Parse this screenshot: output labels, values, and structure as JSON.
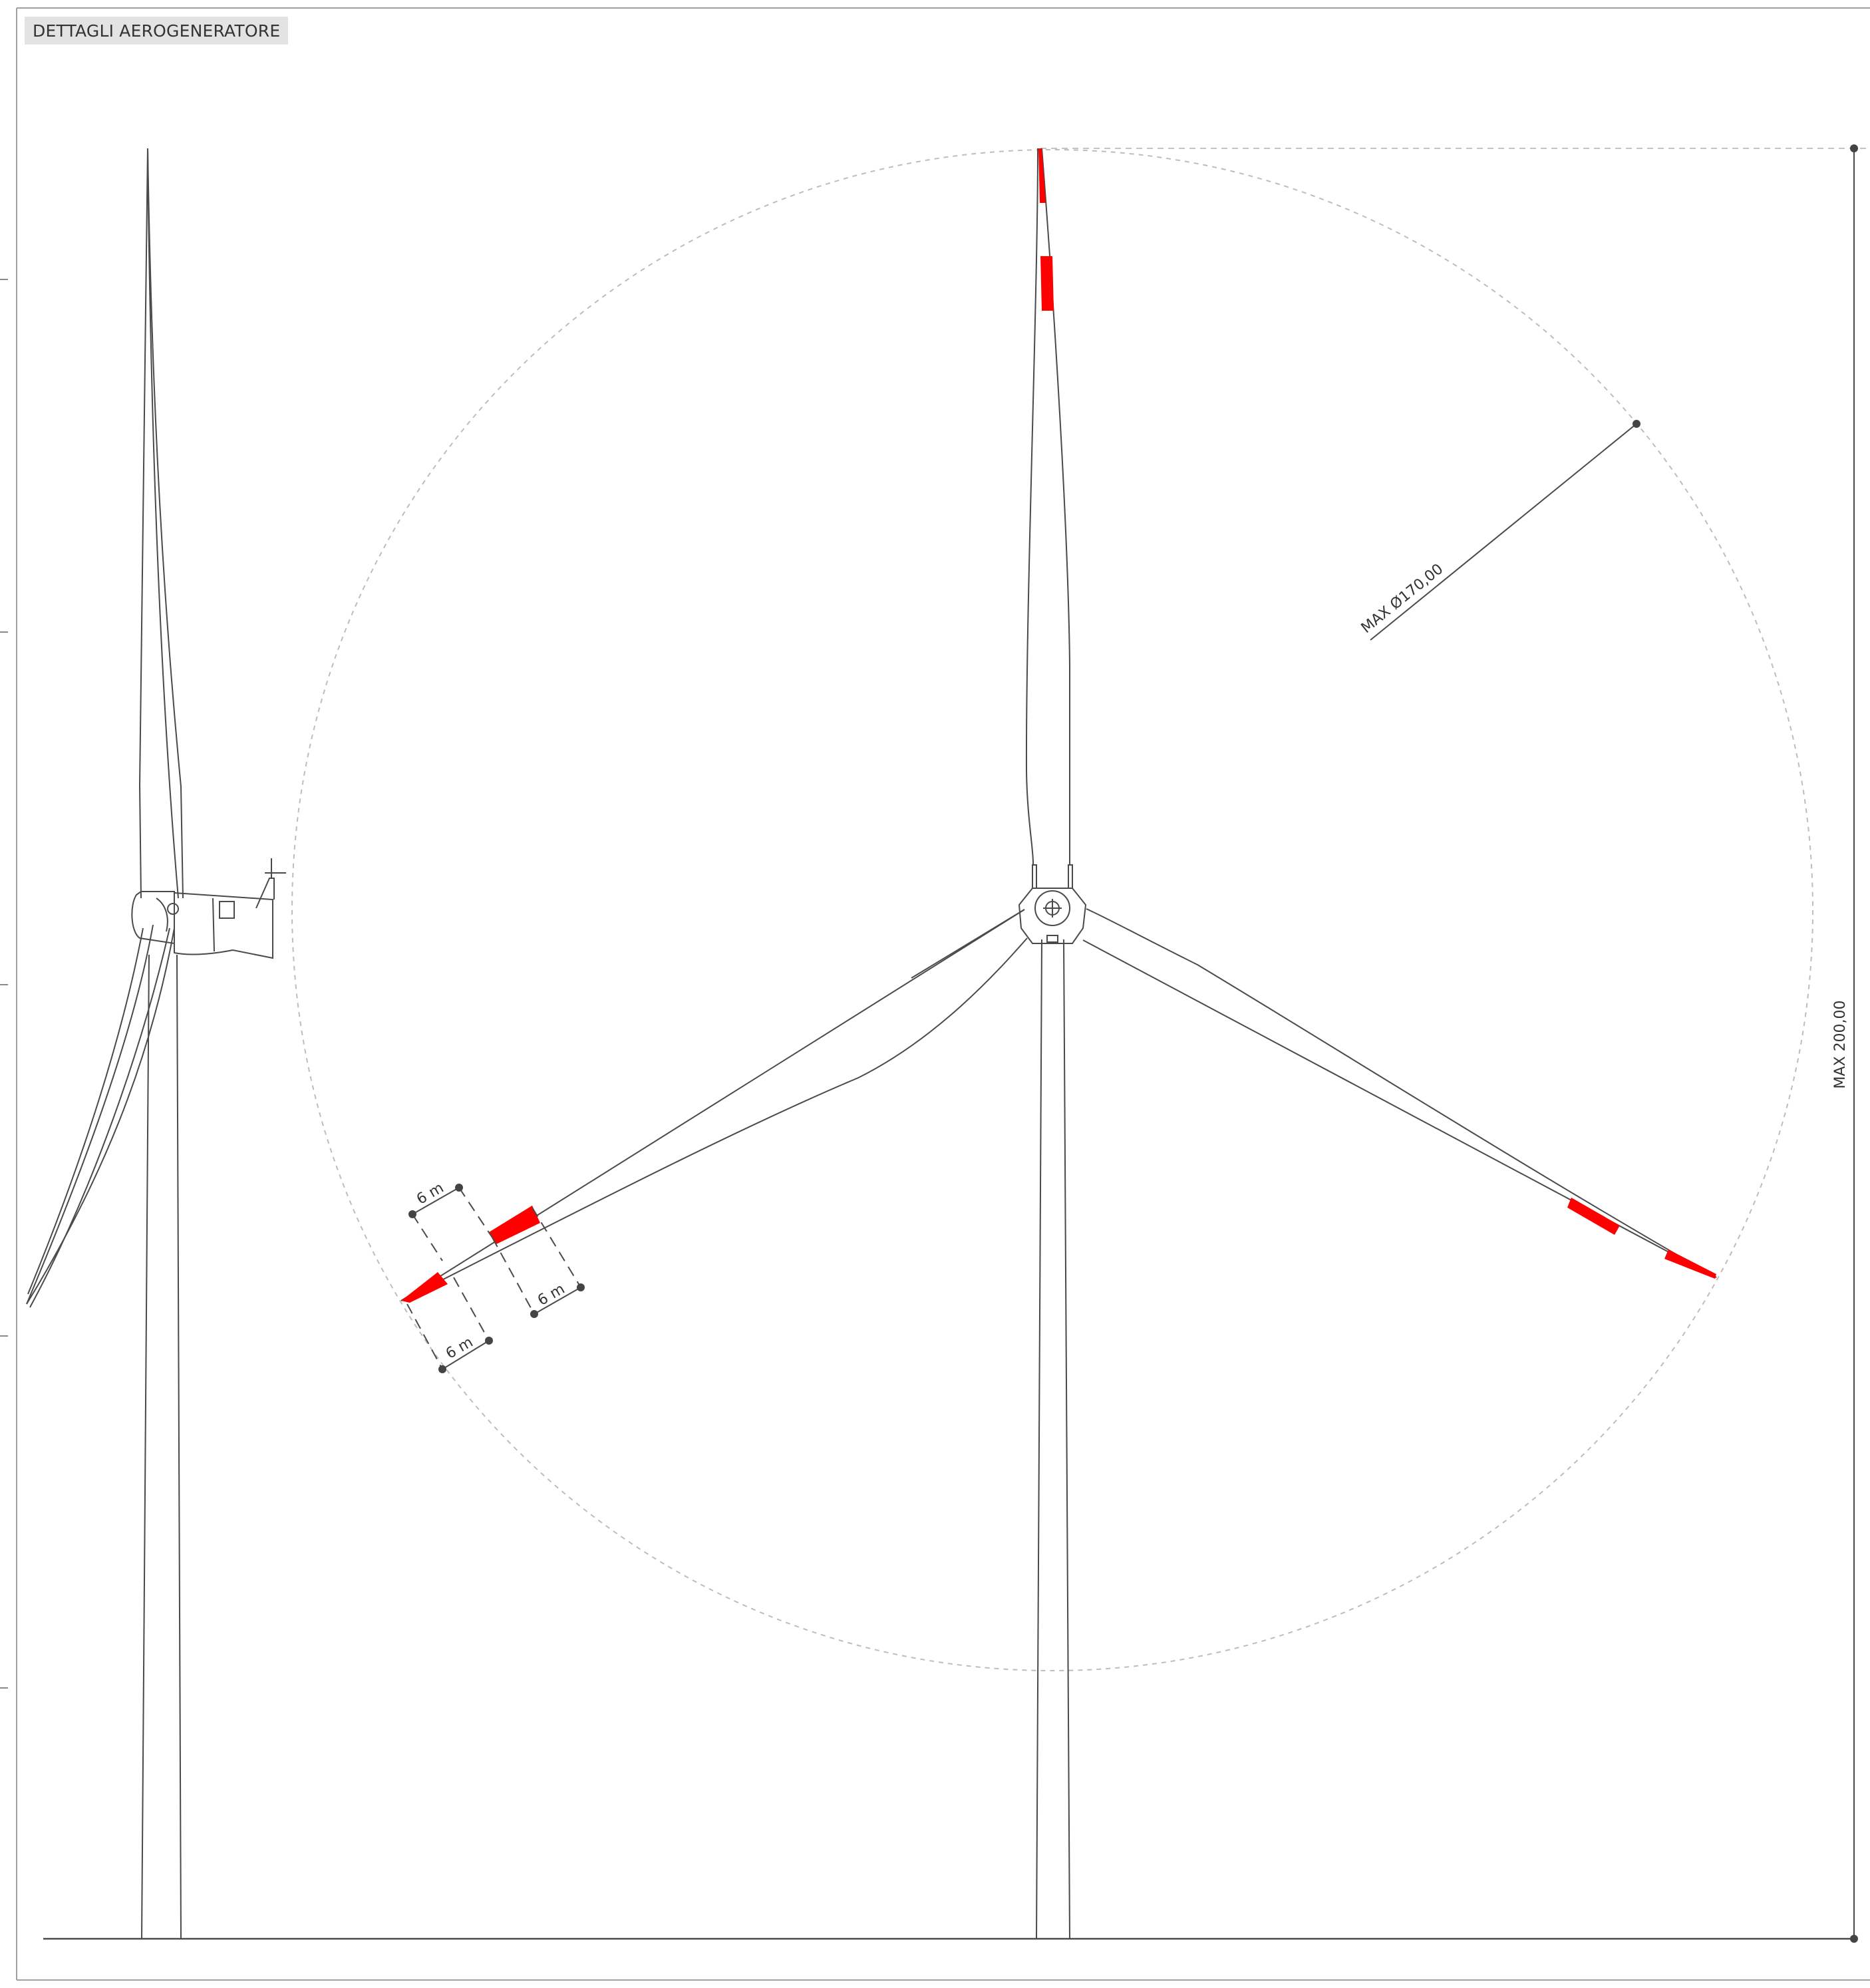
{
  "sheet": {
    "title": "DETTAGLI AEROGENERATORE"
  },
  "dimensions": {
    "max_height_label": "MAX 200,00",
    "max_diameter_label": "MAX Ø170,00",
    "band_label_1": "6 m",
    "band_label_2": "6 m",
    "band_label_3": "6 m"
  },
  "colors": {
    "marking_red": "#ff0000",
    "line": "#4a4a4a",
    "guide": "#c8c8c8",
    "frame": "#9a9a9a"
  }
}
